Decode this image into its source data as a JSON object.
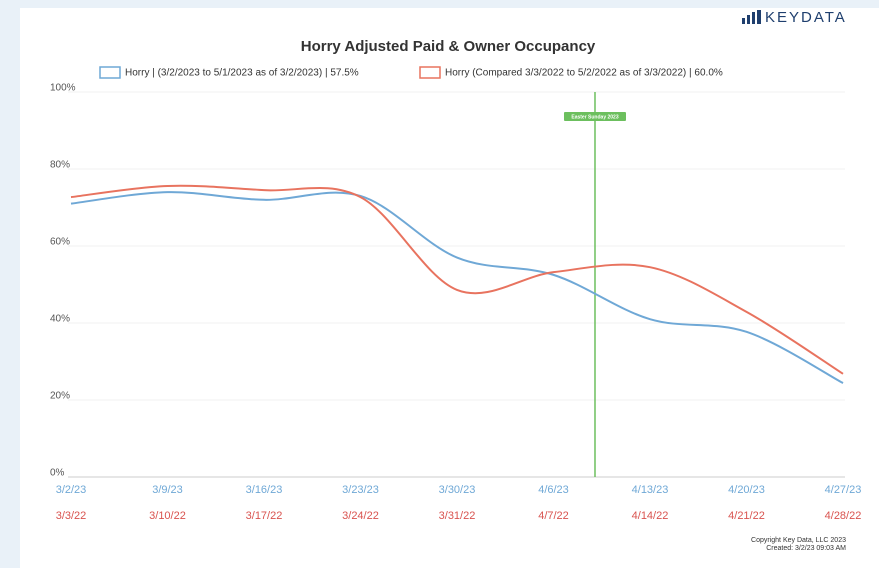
{
  "chart_data": {
    "type": "line",
    "title": "Horry Adjusted Paid & Owner Occupancy",
    "brand": "KEYDATA",
    "categories": [
      "3/2/23",
      "3/9/23",
      "3/16/23",
      "3/23/23",
      "3/30/23",
      "4/6/23",
      "4/13/23",
      "4/20/23",
      "4/27/23"
    ],
    "compare_categories": [
      "3/3/22",
      "3/10/22",
      "3/17/22",
      "3/24/22",
      "3/31/22",
      "4/7/22",
      "4/14/22",
      "4/21/22",
      "4/28/22"
    ],
    "series": [
      {
        "name": "Horry | (3/2/2023 to 5/1/2023 as of 3/2/2023) | 57.5%",
        "color": "#6fa8d6",
        "values": [
          71,
          74,
          72,
          73,
          57,
          52.5,
          41,
          37.7,
          24.4
        ]
      },
      {
        "name": "Horry (Compared 3/3/2022 to 5/2/2022 as of 3/3/2022) | 60.0%",
        "color": "#e8735f",
        "values": [
          72.7,
          75.6,
          74.5,
          72.7,
          48.6,
          53.2,
          54.5,
          42.9,
          26.8
        ]
      }
    ],
    "ylim": [
      0,
      100
    ],
    "yticks": [
      {
        "value": 0,
        "label": "0%"
      },
      {
        "value": 20,
        "label": "20%"
      },
      {
        "value": 40,
        "label": "40%"
      },
      {
        "value": 60,
        "label": "60%"
      },
      {
        "value": 80,
        "label": "80%"
      },
      {
        "value": 100,
        "label": "100%"
      }
    ],
    "grid": true,
    "annotation": {
      "label": "Easter Sunday 2023",
      "x": 5.43,
      "color": "#6cbf5e"
    },
    "footer": [
      "Copyright Key Data, LLC 2023",
      "Created: 3/2/23 09:03 AM"
    ]
  }
}
